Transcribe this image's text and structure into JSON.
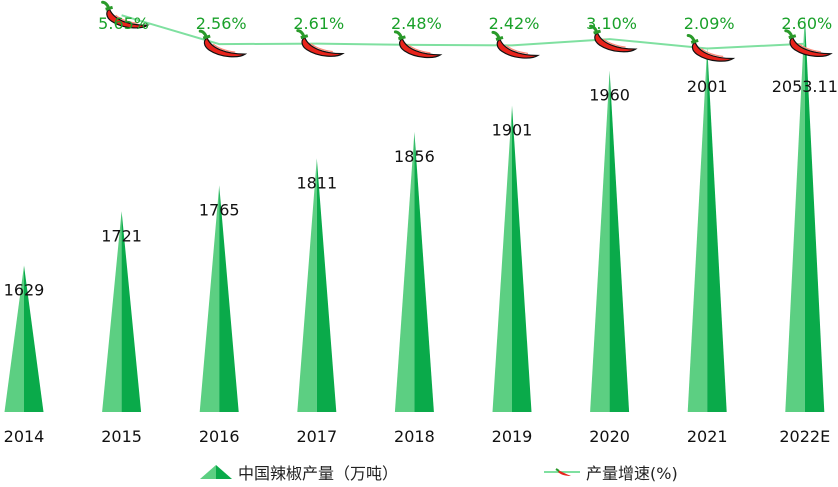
{
  "chart_data": {
    "type": "bar",
    "categories": [
      "2014",
      "2015",
      "2016",
      "2017",
      "2018",
      "2019",
      "2020",
      "2021",
      "2022E"
    ],
    "series": [
      {
        "name": "中国辣椒产量（万吨）",
        "type": "bar",
        "values": [
          1629,
          1721,
          1765,
          1811,
          1856,
          1901,
          1960,
          2001,
          2053.11
        ],
        "labels": [
          "1629",
          "1721",
          "1765",
          "1811",
          "1856",
          "1901",
          "1960",
          "2001",
          "2053.11"
        ]
      },
      {
        "name": "产量增速(%)",
        "type": "line",
        "values": [
          null,
          5.65,
          2.56,
          2.61,
          2.48,
          2.42,
          3.1,
          2.09,
          2.6
        ],
        "labels": [
          "",
          "5.65%",
          "2.56%",
          "2.61%",
          "2.48%",
          "2.42%",
          "3.10%",
          "2.09%",
          "2.60%"
        ]
      }
    ],
    "ylim": [
      1380,
      2080
    ],
    "y2lim": [
      0,
      6
    ],
    "grid": false,
    "legend_position": "bottom",
    "colors": {
      "bar_dark": "#0aaa4a",
      "bar_light": "#5ccf82",
      "line": "#7fe0a0",
      "pepper": "#e8231b",
      "pepper_stem": "#2a9a2a",
      "pct_text": "#1aa12a"
    }
  }
}
